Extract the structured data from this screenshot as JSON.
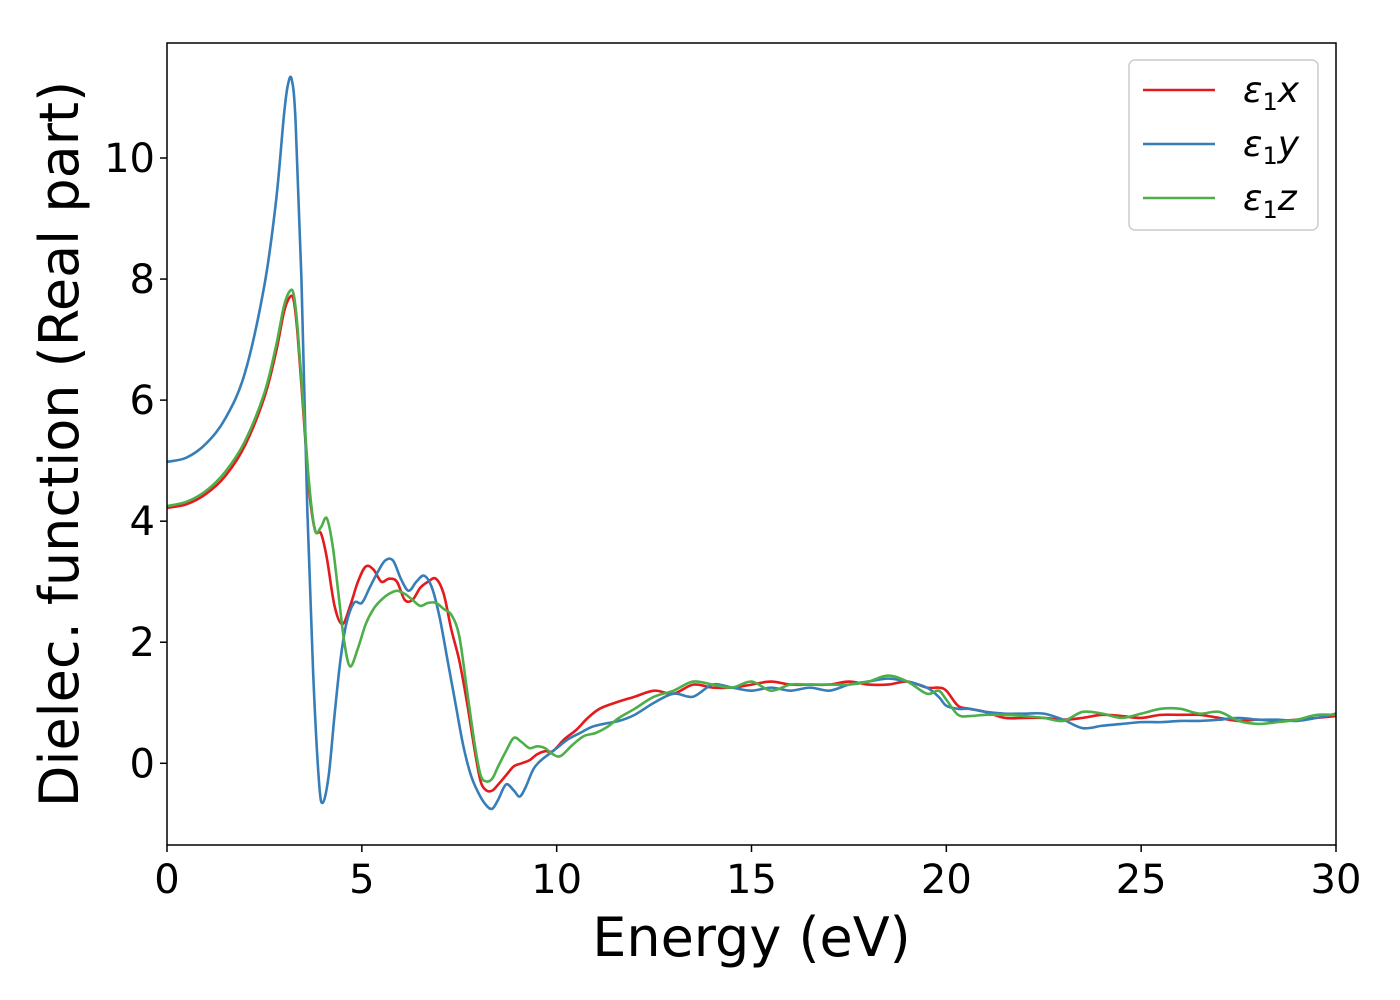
{
  "chart_data": {
    "type": "line",
    "title": "",
    "xlabel": "Energy (eV)",
    "ylabel": "Dielec. function (Real part)",
    "xlim": [
      0,
      30
    ],
    "ylim": [
      -1.35,
      11.9
    ],
    "xticks": [
      {
        "value": 0,
        "label": "0"
      },
      {
        "value": 5,
        "label": "5"
      },
      {
        "value": 10,
        "label": "10"
      },
      {
        "value": 15,
        "label": "15"
      },
      {
        "value": 20,
        "label": "20"
      },
      {
        "value": 25,
        "label": "25"
      },
      {
        "value": 30,
        "label": "30"
      }
    ],
    "yticks": [
      {
        "value": 0,
        "label": "0"
      },
      {
        "value": 2,
        "label": "2"
      },
      {
        "value": 4,
        "label": "4"
      },
      {
        "value": 6,
        "label": "6"
      },
      {
        "value": 8,
        "label": "8"
      },
      {
        "value": 10,
        "label": "10"
      }
    ],
    "grid": false,
    "legend_position": "top-right",
    "series": [
      {
        "name": "ε1x",
        "legend_base": "ε",
        "legend_sub": "1",
        "legend_var": "x",
        "color": "#e41a1c",
        "x": [
          0,
          0.5,
          1.0,
          1.5,
          2.0,
          2.5,
          2.8,
          3.0,
          3.15,
          3.25,
          3.35,
          3.5,
          3.65,
          3.8,
          3.95,
          4.1,
          4.3,
          4.5,
          4.7,
          4.9,
          5.1,
          5.3,
          5.5,
          5.7,
          5.9,
          6.1,
          6.3,
          6.5,
          6.7,
          6.9,
          7.1,
          7.3,
          7.5,
          7.7,
          7.9,
          8.05,
          8.2,
          8.35,
          8.5,
          8.7,
          8.9,
          9.1,
          9.3,
          9.5,
          9.7,
          9.9,
          10.2,
          10.5,
          10.8,
          11.1,
          11.5,
          12.0,
          12.5,
          13.0,
          13.5,
          14.0,
          14.5,
          15.0,
          15.5,
          16.0,
          16.5,
          17.0,
          17.5,
          18.0,
          18.5,
          19.0,
          19.5,
          19.8,
          20.0,
          20.3,
          20.6,
          21.0,
          21.5,
          22.0,
          22.5,
          23.0,
          23.5,
          24.0,
          24.5,
          25.0,
          25.5,
          26.0,
          26.5,
          27.0,
          27.5,
          28.0,
          28.5,
          29.0,
          29.5,
          30.0
        ],
        "y": [
          4.22,
          4.28,
          4.45,
          4.75,
          5.25,
          6.05,
          6.8,
          7.45,
          7.7,
          7.65,
          7.1,
          5.8,
          4.5,
          3.85,
          3.8,
          3.4,
          2.6,
          2.3,
          2.6,
          3.0,
          3.25,
          3.2,
          3.0,
          3.05,
          3.0,
          2.7,
          2.7,
          2.9,
          3.0,
          3.05,
          2.8,
          2.2,
          1.7,
          1.0,
          0.2,
          -0.3,
          -0.45,
          -0.45,
          -0.35,
          -0.2,
          -0.05,
          0.0,
          0.05,
          0.15,
          0.2,
          0.2,
          0.4,
          0.55,
          0.75,
          0.9,
          1.0,
          1.1,
          1.2,
          1.15,
          1.3,
          1.25,
          1.25,
          1.3,
          1.35,
          1.3,
          1.3,
          1.3,
          1.35,
          1.3,
          1.3,
          1.35,
          1.25,
          1.25,
          1.2,
          0.95,
          0.9,
          0.85,
          0.75,
          0.75,
          0.75,
          0.72,
          0.75,
          0.8,
          0.78,
          0.75,
          0.8,
          0.8,
          0.8,
          0.75,
          0.7,
          0.72,
          0.7,
          0.72,
          0.75,
          0.78
        ]
      },
      {
        "name": "ε1y",
        "legend_base": "ε",
        "legend_sub": "1",
        "legend_var": "y",
        "color": "#377eb8",
        "x": [
          0,
          0.5,
          1.0,
          1.5,
          2.0,
          2.5,
          2.8,
          3.0,
          3.1,
          3.2,
          3.3,
          3.45,
          3.6,
          3.75,
          3.9,
          4.0,
          4.15,
          4.3,
          4.45,
          4.6,
          4.8,
          5.0,
          5.2,
          5.4,
          5.6,
          5.8,
          6.0,
          6.2,
          6.4,
          6.6,
          6.8,
          7.0,
          7.2,
          7.4,
          7.6,
          7.8,
          8.0,
          8.2,
          8.35,
          8.5,
          8.7,
          8.9,
          9.05,
          9.2,
          9.4,
          9.6,
          9.8,
          10.0,
          10.3,
          10.6,
          10.9,
          11.2,
          11.6,
          12.0,
          12.5,
          13.0,
          13.5,
          14.0,
          14.5,
          15.0,
          15.5,
          16.0,
          16.5,
          17.0,
          17.5,
          18.0,
          18.5,
          19.0,
          19.5,
          19.8,
          20.0,
          20.3,
          20.6,
          21.0,
          21.5,
          22.0,
          22.5,
          23.0,
          23.5,
          24.0,
          24.5,
          25.0,
          25.5,
          26.0,
          26.5,
          27.0,
          27.5,
          28.0,
          28.5,
          29.0,
          29.5,
          30.0
        ],
        "y": [
          4.98,
          5.05,
          5.28,
          5.7,
          6.45,
          7.9,
          9.3,
          10.7,
          11.2,
          11.3,
          10.6,
          8.0,
          4.2,
          1.5,
          -0.3,
          -0.65,
          -0.2,
          0.8,
          1.7,
          2.3,
          2.65,
          2.65,
          2.9,
          3.15,
          3.35,
          3.35,
          3.05,
          2.85,
          3.0,
          3.1,
          2.9,
          2.4,
          1.7,
          1.0,
          0.3,
          -0.2,
          -0.5,
          -0.7,
          -0.75,
          -0.6,
          -0.35,
          -0.45,
          -0.55,
          -0.4,
          -0.1,
          0.05,
          0.15,
          0.25,
          0.4,
          0.5,
          0.6,
          0.65,
          0.7,
          0.8,
          1.0,
          1.15,
          1.1,
          1.3,
          1.25,
          1.2,
          1.25,
          1.2,
          1.25,
          1.2,
          1.3,
          1.35,
          1.4,
          1.35,
          1.25,
          1.1,
          0.95,
          0.9,
          0.9,
          0.85,
          0.82,
          0.82,
          0.82,
          0.72,
          0.58,
          0.62,
          0.65,
          0.68,
          0.68,
          0.7,
          0.7,
          0.72,
          0.75,
          0.72,
          0.72,
          0.7,
          0.75,
          0.82
        ]
      },
      {
        "name": "ε1z",
        "legend_base": "ε",
        "legend_sub": "1",
        "legend_var": "z",
        "color": "#4daf4a",
        "x": [
          0,
          0.5,
          1.0,
          1.5,
          2.0,
          2.5,
          2.8,
          3.0,
          3.15,
          3.25,
          3.35,
          3.5,
          3.65,
          3.8,
          3.95,
          4.1,
          4.25,
          4.4,
          4.55,
          4.7,
          4.9,
          5.1,
          5.3,
          5.5,
          5.7,
          5.9,
          6.1,
          6.3,
          6.5,
          6.7,
          6.9,
          7.1,
          7.3,
          7.5,
          7.7,
          7.9,
          8.05,
          8.2,
          8.35,
          8.5,
          8.7,
          8.9,
          9.1,
          9.3,
          9.5,
          9.7,
          9.9,
          10.1,
          10.4,
          10.7,
          11.0,
          11.3,
          11.6,
          12.0,
          12.5,
          13.0,
          13.5,
          14.0,
          14.5,
          15.0,
          15.5,
          16.0,
          16.5,
          17.0,
          17.5,
          18.0,
          18.5,
          19.0,
          19.5,
          19.8,
          20.0,
          20.3,
          20.6,
          21.0,
          21.5,
          22.0,
          22.5,
          23.0,
          23.5,
          24.0,
          24.5,
          25.0,
          25.5,
          26.0,
          26.5,
          27.0,
          27.5,
          28.0,
          28.5,
          29.0,
          29.5,
          30.0
        ],
        "y": [
          4.25,
          4.32,
          4.5,
          4.82,
          5.32,
          6.12,
          6.9,
          7.55,
          7.8,
          7.75,
          7.2,
          5.9,
          4.6,
          3.85,
          3.9,
          4.05,
          3.6,
          2.8,
          2.0,
          1.6,
          1.9,
          2.3,
          2.55,
          2.7,
          2.8,
          2.85,
          2.8,
          2.7,
          2.6,
          2.65,
          2.65,
          2.55,
          2.45,
          2.1,
          1.2,
          0.3,
          -0.2,
          -0.3,
          -0.25,
          -0.05,
          0.2,
          0.42,
          0.35,
          0.25,
          0.28,
          0.25,
          0.15,
          0.12,
          0.3,
          0.45,
          0.5,
          0.6,
          0.75,
          0.9,
          1.1,
          1.2,
          1.35,
          1.3,
          1.25,
          1.35,
          1.2,
          1.3,
          1.3,
          1.3,
          1.3,
          1.35,
          1.45,
          1.35,
          1.15,
          1.2,
          1.05,
          0.8,
          0.78,
          0.8,
          0.8,
          0.78,
          0.75,
          0.7,
          0.85,
          0.82,
          0.75,
          0.82,
          0.9,
          0.9,
          0.82,
          0.85,
          0.7,
          0.65,
          0.68,
          0.72,
          0.8,
          0.8
        ]
      }
    ]
  }
}
